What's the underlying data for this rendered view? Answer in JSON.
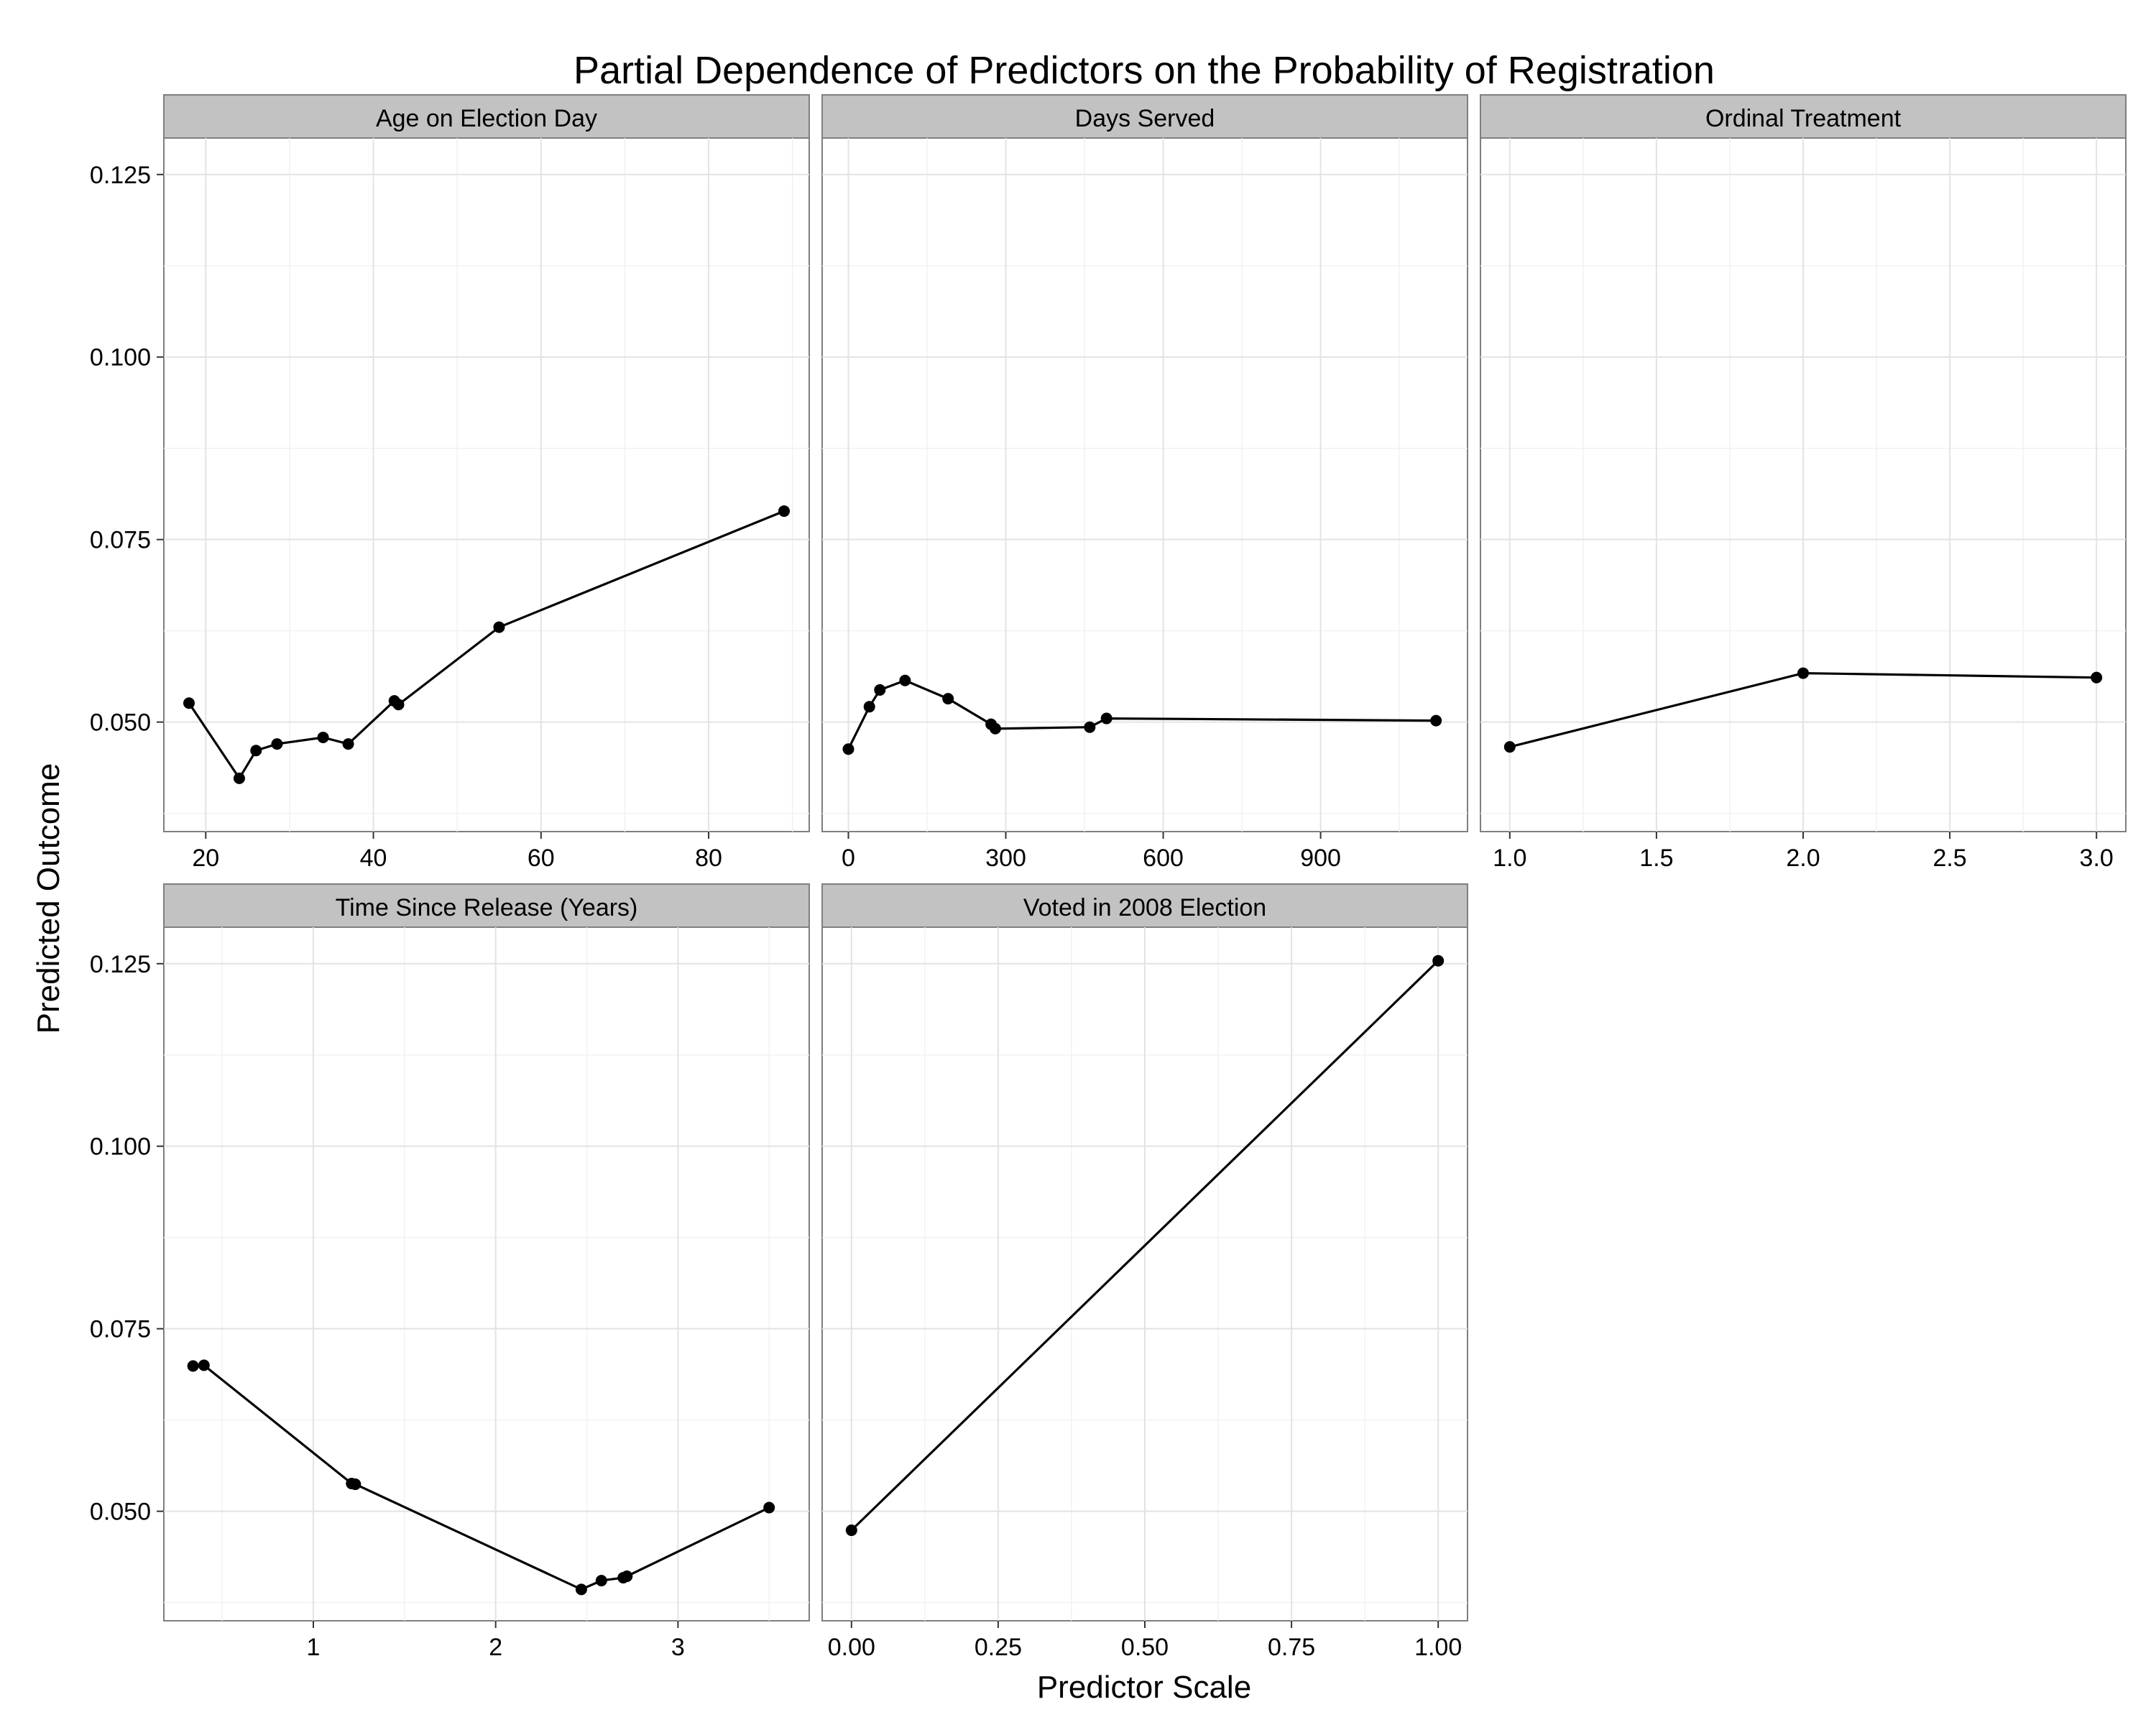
{
  "chart_data": {
    "type": "line",
    "title": "Partial Dependence of Predictors on the Probability of Registration",
    "xlabel": "Predictor Scale",
    "ylabel": "Predicted Outcome",
    "grid": true,
    "shared_y": {
      "ylim": [
        0.035,
        0.13
      ],
      "ticks": [
        0.05,
        0.075,
        0.1,
        0.125
      ],
      "tick_labels": [
        "0.050",
        "0.075",
        "0.100",
        "0.125"
      ]
    },
    "panels": [
      {
        "label": "Age on Election Day",
        "xlim": [
          15,
          92
        ],
        "x_ticks": [
          20,
          40,
          60,
          80
        ],
        "x_tick_labels": [
          "20",
          "40",
          "60",
          "80"
        ],
        "points": [
          [
            18,
            0.0526
          ],
          [
            24,
            0.0423
          ],
          [
            26,
            0.0461
          ],
          [
            28.5,
            0.047
          ],
          [
            34,
            0.0479
          ],
          [
            37,
            0.047
          ],
          [
            42.5,
            0.0529
          ],
          [
            43,
            0.0524
          ],
          [
            55,
            0.063
          ],
          [
            89,
            0.0789
          ]
        ]
      },
      {
        "label": "Days Served",
        "xlim": [
          -50,
          1180
        ],
        "x_ticks": [
          0,
          300,
          600,
          900
        ],
        "x_tick_labels": [
          "0",
          "300",
          "600",
          "900"
        ],
        "points": [
          [
            0,
            0.0463
          ],
          [
            40,
            0.0521
          ],
          [
            60,
            0.0544
          ],
          [
            108,
            0.0557
          ],
          [
            190,
            0.0532
          ],
          [
            272,
            0.0497
          ],
          [
            280,
            0.0491
          ],
          [
            460,
            0.0493
          ],
          [
            492,
            0.0505
          ],
          [
            1120,
            0.0502
          ]
        ]
      },
      {
        "label": "Ordinal Treatment",
        "xlim": [
          0.9,
          3.1
        ],
        "x_ticks": [
          1.0,
          1.5,
          2.0,
          2.5,
          3.0
        ],
        "x_tick_labels": [
          "1.0",
          "1.5",
          "2.0",
          "2.5",
          "3.0"
        ],
        "points": [
          [
            1.0,
            0.0466
          ],
          [
            2.0,
            0.0567
          ],
          [
            3.0,
            0.0561
          ]
        ]
      },
      {
        "label": "Time Since Release (Years)",
        "xlim": [
          0.18,
          3.72
        ],
        "x_ticks": [
          1,
          2,
          3
        ],
        "x_tick_labels": [
          "1",
          "2",
          "3"
        ],
        "points": [
          [
            0.34,
            0.0699
          ],
          [
            0.4,
            0.07
          ],
          [
            1.21,
            0.0538
          ],
          [
            1.23,
            0.0537
          ],
          [
            2.47,
            0.0393
          ],
          [
            2.58,
            0.0405
          ],
          [
            2.7,
            0.0409
          ],
          [
            2.72,
            0.0411
          ],
          [
            3.5,
            0.0505
          ]
        ]
      },
      {
        "label": "Voted in 2008 Election",
        "xlim": [
          -0.05,
          1.05
        ],
        "x_ticks": [
          0.0,
          0.25,
          0.5,
          0.75,
          1.0
        ],
        "x_tick_labels": [
          "0.00",
          "0.25",
          "0.50",
          "0.75",
          "1.00"
        ],
        "points": [
          [
            0.0,
            0.0474
          ],
          [
            1.0,
            0.1254
          ]
        ]
      }
    ]
  }
}
